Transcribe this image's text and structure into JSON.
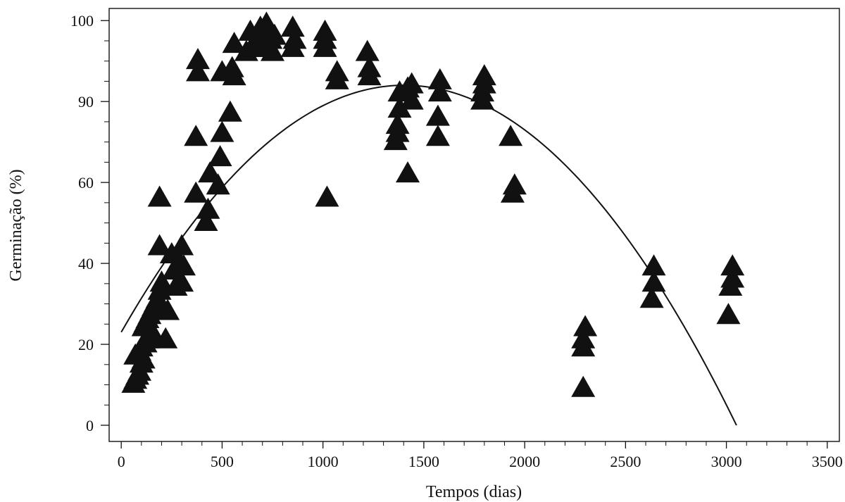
{
  "chart_data": {
    "type": "scatter",
    "xlabel": "Tempos (dias)",
    "ylabel": "Germinação (%)",
    "xlim": [
      -60,
      3560
    ],
    "ylim": [
      -4,
      103
    ],
    "x_ticks": [
      0,
      500,
      1000,
      1500,
      2000,
      2500,
      3000,
      3500
    ],
    "y_ticks": [
      0,
      20,
      40,
      60,
      90,
      100
    ],
    "y_tick_values": [
      0,
      20,
      40,
      60,
      80,
      100
    ],
    "y_tick_labels": [
      "0",
      "20",
      "40",
      "60",
      "90",
      "100"
    ],
    "grid": false,
    "marker": "filled-triangle",
    "marker_color": "#111111",
    "fit_curve": {
      "type": "quadratic",
      "description_points": [
        [
          0,
          23
        ],
        [
          1430,
          84
        ],
        [
          3050,
          0
        ]
      ],
      "x_range": [
        0,
        3050
      ]
    },
    "points": [
      [
        60,
        10
      ],
      [
        70,
        11
      ],
      [
        80,
        12
      ],
      [
        90,
        13
      ],
      [
        100,
        15
      ],
      [
        110,
        16
      ],
      [
        70,
        17
      ],
      [
        90,
        18
      ],
      [
        100,
        19
      ],
      [
        120,
        20
      ],
      [
        130,
        21
      ],
      [
        140,
        22
      ],
      [
        150,
        23
      ],
      [
        110,
        24
      ],
      [
        120,
        25
      ],
      [
        130,
        26
      ],
      [
        140,
        27
      ],
      [
        150,
        28
      ],
      [
        160,
        29
      ],
      [
        170,
        30
      ],
      [
        180,
        31
      ],
      [
        190,
        33
      ],
      [
        200,
        35
      ],
      [
        190,
        44
      ],
      [
        190,
        56
      ],
      [
        220,
        21
      ],
      [
        230,
        28
      ],
      [
        250,
        42
      ],
      [
        260,
        38
      ],
      [
        270,
        34
      ],
      [
        290,
        40
      ],
      [
        300,
        44
      ],
      [
        300,
        35
      ],
      [
        310,
        39
      ],
      [
        370,
        71
      ],
      [
        370,
        57
      ],
      [
        380,
        87
      ],
      [
        380,
        90
      ],
      [
        420,
        50
      ],
      [
        430,
        53
      ],
      [
        440,
        62
      ],
      [
        480,
        59
      ],
      [
        490,
        66
      ],
      [
        500,
        72
      ],
      [
        500,
        87
      ],
      [
        540,
        77
      ],
      [
        550,
        88
      ],
      [
        560,
        86
      ],
      [
        560,
        94
      ],
      [
        620,
        92
      ],
      [
        640,
        97
      ],
      [
        660,
        93
      ],
      [
        680,
        96
      ],
      [
        690,
        98
      ],
      [
        700,
        93
      ],
      [
        720,
        99
      ],
      [
        730,
        97
      ],
      [
        740,
        95
      ],
      [
        750,
        92
      ],
      [
        760,
        96
      ],
      [
        850,
        93
      ],
      [
        850,
        98
      ],
      [
        860,
        95
      ],
      [
        1010,
        93
      ],
      [
        1010,
        95
      ],
      [
        1010,
        97
      ],
      [
        1020,
        56
      ],
      [
        1070,
        85
      ],
      [
        1070,
        87
      ],
      [
        1220,
        92
      ],
      [
        1230,
        86
      ],
      [
        1230,
        88
      ],
      [
        1360,
        70
      ],
      [
        1370,
        72
      ],
      [
        1370,
        74
      ],
      [
        1380,
        78
      ],
      [
        1380,
        82
      ],
      [
        1420,
        62
      ],
      [
        1420,
        83
      ],
      [
        1440,
        80
      ],
      [
        1440,
        84
      ],
      [
        1570,
        71
      ],
      [
        1570,
        76
      ],
      [
        1580,
        82
      ],
      [
        1580,
        85
      ],
      [
        1790,
        80
      ],
      [
        1790,
        82
      ],
      [
        1800,
        84
      ],
      [
        1800,
        86
      ],
      [
        1930,
        71
      ],
      [
        1940,
        57
      ],
      [
        1950,
        59
      ],
      [
        2290,
        9
      ],
      [
        2290,
        19
      ],
      [
        2290,
        21
      ],
      [
        2300,
        24
      ],
      [
        2630,
        31
      ],
      [
        2640,
        35
      ],
      [
        2640,
        39
      ],
      [
        3010,
        27
      ],
      [
        3020,
        34
      ],
      [
        3030,
        36
      ],
      [
        3030,
        39
      ]
    ]
  }
}
